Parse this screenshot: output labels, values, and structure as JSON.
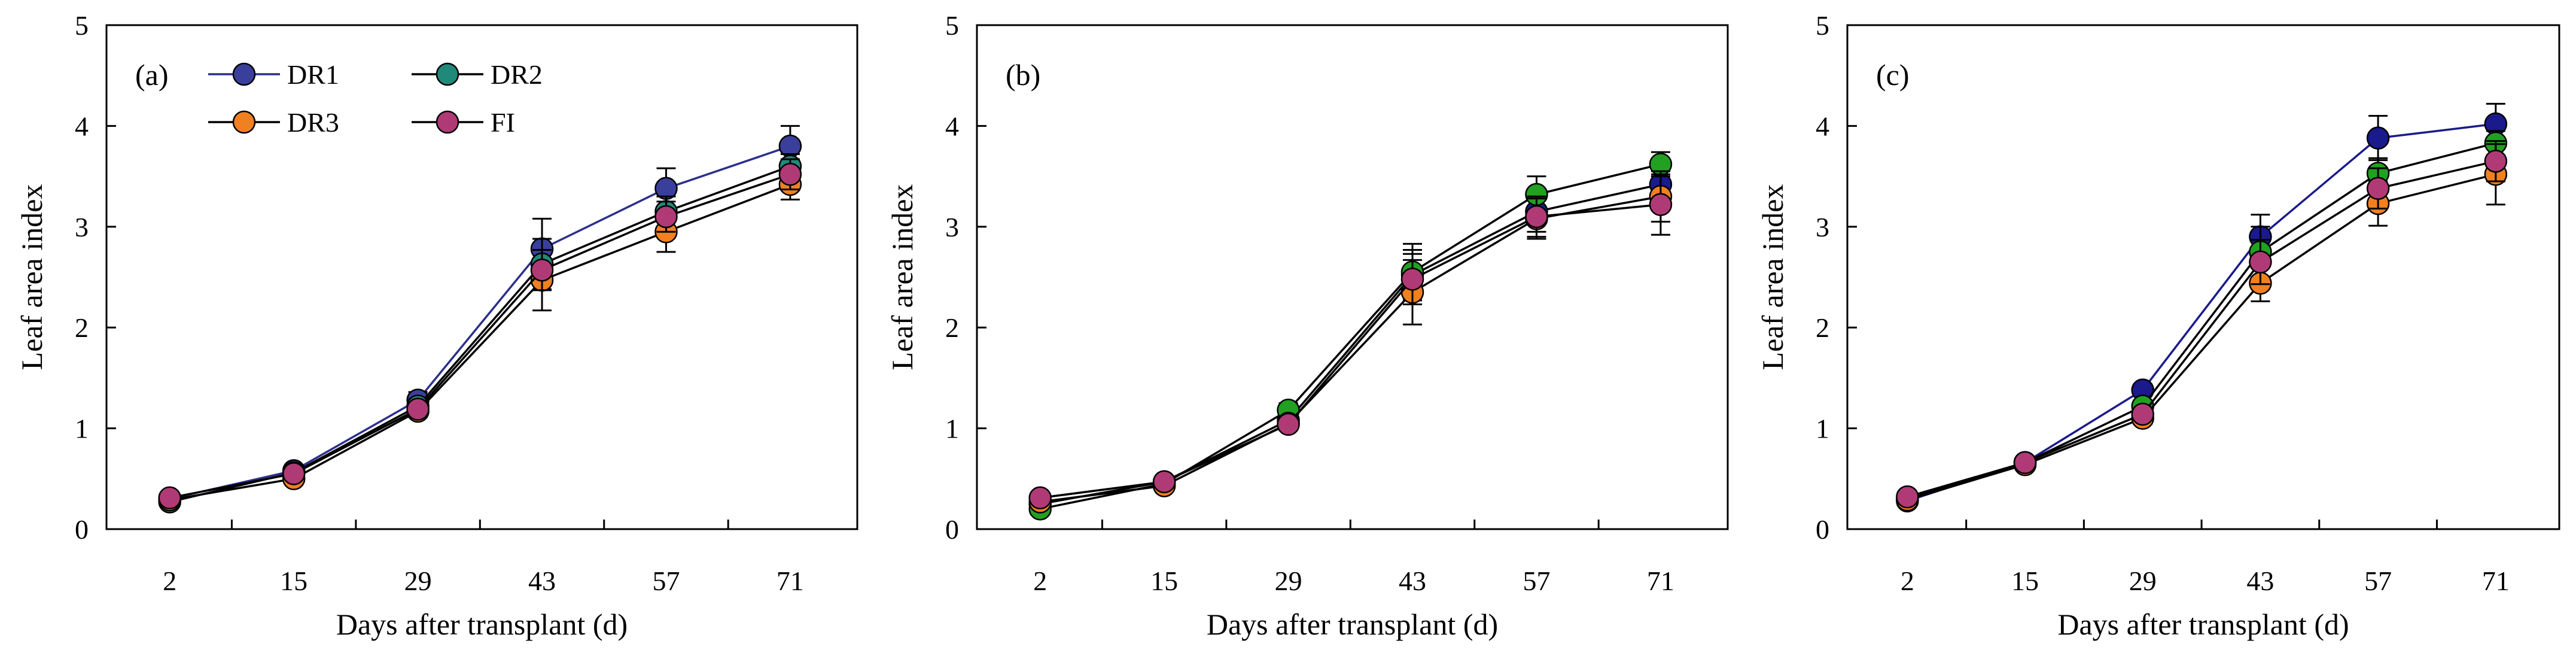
{
  "chart_data": [
    {
      "type": "line",
      "panel_label": "(a)",
      "xlabel": "Days after transplant (d)",
      "ylabel": "Leaf area index",
      "categories": [
        "2",
        "15",
        "29",
        "43",
        "57",
        "71"
      ],
      "ylim": [
        0,
        5
      ],
      "yticks": [
        "0",
        "1",
        "2",
        "3",
        "4",
        "5"
      ],
      "grid": false,
      "legend": {
        "placement": "top-left",
        "columns": 2
      },
      "series": [
        {
          "name": "DR1",
          "color": "#3a3f9c",
          "line_color": "#2b2f8c",
          "values": [
            0.3,
            0.58,
            1.28,
            2.78,
            3.38,
            3.8
          ],
          "errors": [
            0.03,
            0.04,
            0.08,
            0.3,
            0.2,
            0.2
          ]
        },
        {
          "name": "DR2",
          "color": "#1f8a7a",
          "line_color": "#000000",
          "values": [
            0.27,
            0.56,
            1.22,
            2.63,
            3.15,
            3.6
          ],
          "errors": [
            0.02,
            0.04,
            0.07,
            0.25,
            0.15,
            0.12
          ]
        },
        {
          "name": "DR3",
          "color": "#f08020",
          "line_color": "#000000",
          "values": [
            0.29,
            0.5,
            1.17,
            2.47,
            2.95,
            3.42
          ],
          "errors": [
            0.02,
            0.03,
            0.06,
            0.3,
            0.2,
            0.15
          ]
        },
        {
          "name": "FI",
          "color": "#b03a76",
          "line_color": "#000000",
          "values": [
            0.31,
            0.55,
            1.19,
            2.57,
            3.1,
            3.52
          ],
          "errors": [
            0.02,
            0.03,
            0.06,
            0.2,
            0.15,
            0.15
          ]
        }
      ]
    },
    {
      "type": "line",
      "panel_label": "(b)",
      "xlabel": "Days after transplant (d)",
      "ylabel": "Leaf area index",
      "categories": [
        "2",
        "15",
        "29",
        "43",
        "57",
        "71"
      ],
      "ylim": [
        0,
        5
      ],
      "yticks": [
        "0",
        "1",
        "2",
        "3",
        "4",
        "5"
      ],
      "grid": false,
      "series": [
        {
          "name": "DR1",
          "color": "#1a1a8c",
          "line_color": "#000000",
          "values": [
            0.25,
            0.47,
            1.08,
            2.52,
            3.15,
            3.42
          ],
          "errors": [
            0.02,
            0.03,
            0.06,
            0.25,
            0.2,
            0.2
          ]
        },
        {
          "name": "DR2",
          "color": "#22a022",
          "line_color": "#000000",
          "values": [
            0.2,
            0.45,
            1.18,
            2.55,
            3.32,
            3.62
          ],
          "errors": [
            0.02,
            0.03,
            0.07,
            0.28,
            0.18,
            0.12
          ]
        },
        {
          "name": "DR3",
          "color": "#f08020",
          "line_color": "#000000",
          "values": [
            0.27,
            0.43,
            1.05,
            2.35,
            3.08,
            3.3
          ],
          "errors": [
            0.02,
            0.03,
            0.06,
            0.32,
            0.2,
            0.25
          ]
        },
        {
          "name": "FI",
          "color": "#b03a76",
          "line_color": "#000000",
          "values": [
            0.31,
            0.47,
            1.04,
            2.48,
            3.1,
            3.22
          ],
          "errors": [
            0.02,
            0.03,
            0.06,
            0.25,
            0.2,
            0.3
          ]
        }
      ]
    },
    {
      "type": "line",
      "panel_label": "(c)",
      "xlabel": "Days after transplant (d)",
      "ylabel": "Leaf area index",
      "categories": [
        "2",
        "15",
        "29",
        "43",
        "57",
        "71"
      ],
      "ylim": [
        0,
        5
      ],
      "yticks": [
        "0",
        "1",
        "2",
        "3",
        "4",
        "5"
      ],
      "grid": false,
      "series": [
        {
          "name": "DR1",
          "color": "#1a1a8c",
          "line_color": "#1a1a8c",
          "values": [
            0.28,
            0.66,
            1.38,
            2.9,
            3.88,
            4.02
          ],
          "errors": [
            0.02,
            0.03,
            0.06,
            0.22,
            0.22,
            0.2
          ]
        },
        {
          "name": "DR2",
          "color": "#22a022",
          "line_color": "#000000",
          "values": [
            0.3,
            0.66,
            1.22,
            2.75,
            3.53,
            3.83
          ],
          "errors": [
            0.02,
            0.03,
            0.06,
            0.25,
            0.15,
            0.12
          ]
        },
        {
          "name": "DR3",
          "color": "#f08020",
          "line_color": "#000000",
          "values": [
            0.29,
            0.64,
            1.1,
            2.44,
            3.23,
            3.52
          ],
          "errors": [
            0.02,
            0.03,
            0.06,
            0.18,
            0.22,
            0.3
          ]
        },
        {
          "name": "FI",
          "color": "#b03a76",
          "line_color": "#000000",
          "values": [
            0.32,
            0.66,
            1.14,
            2.65,
            3.38,
            3.65
          ],
          "errors": [
            0.02,
            0.03,
            0.06,
            0.22,
            0.2,
            0.2
          ]
        }
      ]
    }
  ]
}
